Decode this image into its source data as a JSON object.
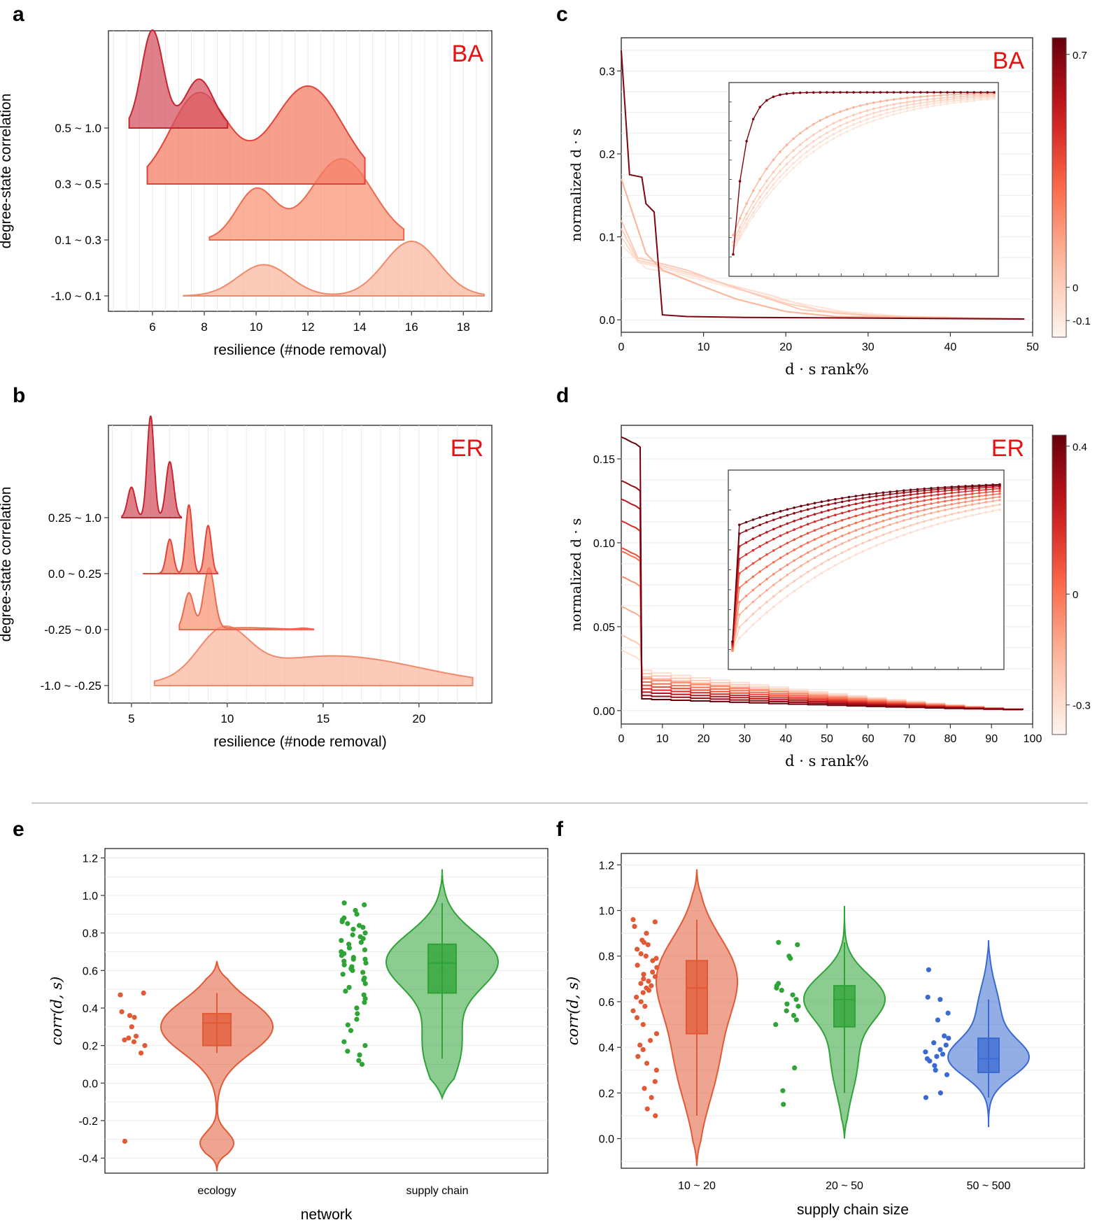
{
  "panel_letters": [
    "a",
    "b",
    "c",
    "d",
    "e",
    "f"
  ],
  "chart_data": [
    {
      "panel": "a",
      "type": "area",
      "title": "",
      "tag": "BA",
      "xlabel": "resilience (#node removal)",
      "ylabel": "degree-state correlation",
      "xlim": [
        4.3,
        19.1
      ],
      "xticks": [
        "6",
        "8",
        "10",
        "12",
        "14",
        "16",
        "18"
      ],
      "yticks": [
        "-1.0 ~ 0.1",
        "0.1 ~ 0.3",
        "0.3 ~ 0.5",
        "0.5 ~ 1.0"
      ],
      "series": [
        {
          "name": "-1.0 ~ 0.1",
          "range": [
            7.2,
            18.8
          ],
          "peak": 0.78,
          "components": [
            [
              10.3,
              1.0,
              1.0
            ],
            [
              16.0,
              1.05,
              1.75
            ]
          ]
        },
        {
          "name": "0.1 ~ 0.3",
          "range": [
            8.2,
            15.7
          ],
          "peak": 1.16,
          "components": [
            [
              10.0,
              0.75,
              0.85
            ],
            [
              13.3,
              1.2,
              1.38
            ]
          ]
        },
        {
          "name": "0.3 ~ 0.5",
          "range": [
            5.8,
            14.2
          ],
          "peak": 1.4,
          "components": [
            [
              7.8,
              1.1,
              1.02
            ],
            [
              12.0,
              1.35,
              1.1
            ]
          ]
        },
        {
          "name": "0.5 ~ 1.0",
          "range": [
            5.1,
            8.9
          ],
          "peak": 1.4,
          "components": [
            [
              6.0,
              0.42,
              1.0
            ],
            [
              7.8,
              0.55,
              0.5
            ]
          ]
        }
      ]
    },
    {
      "panel": "b",
      "type": "area",
      "title": "",
      "tag": "ER",
      "xlabel": "resilience (#node removal)",
      "ylabel": "degree-state correlation",
      "xlim": [
        3.8,
        23.8
      ],
      "xticks": [
        "5",
        "10",
        "15",
        "20"
      ],
      "yticks": [
        "-1.0 ~ -0.25",
        "-0.25 ~ 0.0",
        "0.0 ~ 0.25",
        "0.25 ~ 1.0"
      ],
      "series": [
        {
          "name": "-1.0 ~ -0.25",
          "range": [
            6.2,
            22.8
          ],
          "peak": 0.85,
          "components": [
            [
              9.8,
              1.3,
              0.85
            ],
            [
              15.5,
              4.5,
              0.55
            ]
          ]
        },
        {
          "name": "-0.25 ~ 0.0",
          "range": [
            7.5,
            14.5
          ],
          "peak": 0.88,
          "components": [
            [
              8.0,
              0.25,
              0.6
            ],
            [
              9.05,
              0.28,
              1.0
            ],
            [
              14.0,
              0.3,
              0.02
            ],
            [
              11.0,
              1.5,
              0.03
            ]
          ]
        },
        {
          "name": "0.0 ~ 0.25",
          "range": [
            5.6,
            9.5
          ],
          "peak": 0.98,
          "components": [
            [
              7.0,
              0.18,
              0.5
            ],
            [
              8.0,
              0.17,
              1.0
            ],
            [
              9.0,
              0.17,
              0.7
            ]
          ]
        },
        {
          "name": "0.25 ~ 1.0",
          "range": [
            4.5,
            7.6
          ],
          "peak": 1.45,
          "components": [
            [
              5.0,
              0.2,
              0.3
            ],
            [
              6.0,
              0.18,
              1.0
            ],
            [
              7.0,
              0.2,
              0.55
            ]
          ]
        }
      ]
    },
    {
      "panel": "c",
      "type": "line",
      "title": "",
      "tag": "BA",
      "xlabel": "d · s rank%",
      "ylabel": "normalized d · s",
      "xlim": [
        0,
        50
      ],
      "ylim": [
        -0.015,
        0.34
      ],
      "xticks": [
        0,
        10,
        20,
        30,
        40,
        50
      ],
      "yticks": [
        0.0,
        0.1,
        0.2,
        0.3
      ],
      "colorbar": {
        "min": -0.15,
        "max": 0.75,
        "ticks": [
          -0.1,
          0.0,
          0.7
        ]
      },
      "series": [
        {
          "corr": 0.7,
          "points": [
            [
              0,
              0.325
            ],
            [
              1,
              0.175
            ],
            [
              2.5,
              0.172
            ],
            [
              3,
              0.14
            ],
            [
              4,
              0.13
            ],
            [
              5,
              0.006
            ],
            [
              8,
              0.004
            ],
            [
              15,
              0.003
            ],
            [
              49,
              0.001
            ]
          ]
        },
        {
          "corr": 0.1,
          "points": [
            [
              0,
              0.17
            ],
            [
              1,
              0.14
            ],
            [
              3,
              0.08
            ],
            [
              5,
              0.06
            ],
            [
              8,
              0.048
            ],
            [
              10,
              0.04
            ],
            [
              14,
              0.025
            ],
            [
              20,
              0.01
            ],
            [
              26,
              0.004
            ],
            [
              49,
              0.001
            ]
          ]
        },
        {
          "corr": 0.02,
          "points": [
            [
              0,
              0.12
            ],
            [
              2,
              0.075
            ],
            [
              4,
              0.07
            ],
            [
              8,
              0.06
            ],
            [
              12,
              0.045
            ],
            [
              18,
              0.025
            ],
            [
              22,
              0.012
            ],
            [
              30,
              0.005
            ],
            [
              49,
              0.001
            ]
          ]
        },
        {
          "corr": -0.02,
          "points": [
            [
              0,
              0.11
            ],
            [
              2,
              0.072
            ],
            [
              5,
              0.065
            ],
            [
              10,
              0.052
            ],
            [
              15,
              0.035
            ],
            [
              20,
              0.02
            ],
            [
              26,
              0.008
            ],
            [
              35,
              0.003
            ],
            [
              49,
              0.001
            ]
          ]
        },
        {
          "corr": -0.06,
          "points": [
            [
              0,
              0.1
            ],
            [
              2,
              0.07
            ],
            [
              6,
              0.06
            ],
            [
              12,
              0.045
            ],
            [
              18,
              0.03
            ],
            [
              24,
              0.012
            ],
            [
              32,
              0.004
            ],
            [
              49,
              0.001
            ]
          ]
        },
        {
          "corr": -0.09,
          "points": [
            [
              0,
              0.09
            ],
            [
              3,
              0.062
            ],
            [
              7,
              0.055
            ],
            [
              13,
              0.04
            ],
            [
              19,
              0.025
            ],
            [
              27,
              0.01
            ],
            [
              36,
              0.003
            ],
            [
              49,
              0.001
            ]
          ]
        }
      ],
      "inset": {
        "points_per_curve": 40,
        "curves": [
          {
            "corr": 0.7,
            "start": 0.07,
            "rate": 0.6
          },
          {
            "corr": 0.1,
            "start": 0.18,
            "rate": 0.125
          },
          {
            "corr": 0.02,
            "start": 0.14,
            "rate": 0.105
          },
          {
            "corr": -0.02,
            "start": 0.12,
            "rate": 0.095
          },
          {
            "corr": -0.06,
            "start": 0.1,
            "rate": 0.088
          },
          {
            "corr": -0.09,
            "start": 0.09,
            "rate": 0.082
          }
        ]
      }
    },
    {
      "panel": "d",
      "type": "line",
      "title": "",
      "tag": "ER",
      "xlabel": "d · s rank%",
      "ylabel": "normalized d · s",
      "xlim": [
        0,
        100
      ],
      "ylim": [
        -0.008,
        0.17
      ],
      "xticks": [
        0,
        10,
        20,
        30,
        40,
        50,
        60,
        70,
        80,
        90,
        100
      ],
      "yticks": [
        0.0,
        0.05,
        0.1,
        0.15
      ],
      "colorbar": {
        "min": -0.38,
        "max": 0.43,
        "ticks": [
          -0.3,
          0,
          0.4
        ]
      },
      "series": [
        {
          "corr": 0.42,
          "start": 0.163,
          "plateau": 0.007,
          "end": 0.0005
        },
        {
          "corr": 0.34,
          "start": 0.137,
          "plateau": 0.009,
          "end": 0.0005
        },
        {
          "corr": 0.26,
          "start": 0.126,
          "plateau": 0.011,
          "end": 0.0005
        },
        {
          "corr": 0.18,
          "start": 0.113,
          "plateau": 0.013,
          "end": 0.0005
        },
        {
          "corr": 0.1,
          "start": 0.097,
          "plateau": 0.015,
          "end": 0.0005
        },
        {
          "corr": 0.02,
          "start": 0.095,
          "plateau": 0.017,
          "end": 0.0005
        },
        {
          "corr": -0.06,
          "start": 0.08,
          "plateau": 0.019,
          "end": 0.0005
        },
        {
          "corr": -0.14,
          "start": 0.062,
          "plateau": 0.02,
          "end": 0.0005
        },
        {
          "corr": -0.22,
          "start": 0.045,
          "plateau": 0.022,
          "end": 0.0005
        },
        {
          "corr": -0.3,
          "start": 0.036,
          "plateau": 0.024,
          "end": 0.0005
        }
      ],
      "inset": {
        "points_per_curve": 40,
        "curves": [
          {
            "corr": 0.42,
            "start": 0.1,
            "jump": 0.75,
            "rate": 0.06
          },
          {
            "corr": 0.34,
            "start": 0.1,
            "jump": 0.7,
            "rate": 0.06
          },
          {
            "corr": 0.26,
            "start": 0.09,
            "jump": 0.63,
            "rate": 0.06
          },
          {
            "corr": 0.18,
            "start": 0.08,
            "jump": 0.56,
            "rate": 0.058
          },
          {
            "corr": 0.1,
            "start": 0.07,
            "jump": 0.48,
            "rate": 0.056
          },
          {
            "corr": 0.02,
            "start": 0.06,
            "jump": 0.4,
            "rate": 0.054
          },
          {
            "corr": -0.06,
            "start": 0.05,
            "jump": 0.32,
            "rate": 0.052
          },
          {
            "corr": -0.14,
            "start": 0.05,
            "jump": 0.25,
            "rate": 0.05
          },
          {
            "corr": -0.22,
            "start": 0.05,
            "jump": 0.18,
            "rate": 0.047
          },
          {
            "corr": -0.3,
            "start": 0.05,
            "jump": 0.12,
            "rate": 0.044
          }
        ]
      }
    },
    {
      "panel": "e",
      "type": "violin",
      "title": "",
      "xlabel": "network",
      "ylabel": "corr(d, s)",
      "ylim": [
        -0.48,
        1.25
      ],
      "yticks": [
        -0.4,
        -0.2,
        0.0,
        0.2,
        0.4,
        0.6,
        0.8,
        1.0,
        1.2
      ],
      "groups": [
        {
          "label": "ecology",
          "color": "#e15a36",
          "points": [
            0.47,
            0.48,
            0.38,
            0.35,
            0.36,
            0.3,
            0.25,
            0.23,
            0.24,
            0.22,
            0.2,
            0.16,
            -0.31
          ],
          "box": {
            "q1": 0.2,
            "median": 0.32,
            "q3": 0.37,
            "min": 0.16,
            "max": 0.48
          },
          "violin": {
            "min": -0.47,
            "max": 0.65,
            "components": [
              [
                0.3,
                0.14,
                1.0
              ],
              [
                -0.32,
                0.06,
                0.3
              ]
            ]
          }
        },
        {
          "label": "supply chain",
          "color": "#2ea336",
          "points": [
            0.96,
            0.95,
            0.92,
            0.9,
            0.88,
            0.87,
            0.86,
            0.85,
            0.84,
            0.83,
            0.82,
            0.8,
            0.79,
            0.78,
            0.77,
            0.76,
            0.75,
            0.74,
            0.72,
            0.71,
            0.7,
            0.69,
            0.68,
            0.67,
            0.66,
            0.66,
            0.65,
            0.64,
            0.63,
            0.62,
            0.61,
            0.6,
            0.59,
            0.58,
            0.56,
            0.55,
            0.53,
            0.51,
            0.49,
            0.47,
            0.45,
            0.43,
            0.4,
            0.37,
            0.34,
            0.31,
            0.28,
            0.22,
            0.2,
            0.17,
            0.15,
            0.12,
            0.1
          ],
          "box": {
            "q1": 0.48,
            "median": 0.64,
            "q3": 0.74,
            "min": 0.13,
            "max": 0.96
          },
          "violin": {
            "min": -0.08,
            "max": 1.14,
            "components": [
              [
                0.65,
                0.15,
                1.0
              ],
              [
                0.2,
                0.18,
                0.35
              ]
            ]
          }
        }
      ]
    },
    {
      "panel": "f",
      "type": "violin",
      "title": "",
      "xlabel": "supply chain size",
      "ylabel": "corr(d, s)",
      "ylim": [
        -0.13,
        1.25
      ],
      "yticks": [
        0.0,
        0.2,
        0.4,
        0.6,
        0.8,
        1.0,
        1.2
      ],
      "groups": [
        {
          "label": "10 ~ 20",
          "color": "#e15a36",
          "points": [
            0.96,
            0.95,
            0.93,
            0.9,
            0.87,
            0.86,
            0.85,
            0.83,
            0.81,
            0.8,
            0.79,
            0.78,
            0.76,
            0.75,
            0.73,
            0.72,
            0.71,
            0.7,
            0.69,
            0.68,
            0.67,
            0.66,
            0.65,
            0.64,
            0.62,
            0.6,
            0.58,
            0.56,
            0.53,
            0.5,
            0.46,
            0.43,
            0.41,
            0.39,
            0.36,
            0.33,
            0.3,
            0.25,
            0.22,
            0.18,
            0.13,
            0.1
          ],
          "box": {
            "q1": 0.46,
            "median": 0.66,
            "q3": 0.78,
            "min": 0.1,
            "max": 0.96
          },
          "violin": {
            "min": -0.12,
            "max": 1.18,
            "components": [
              [
                0.72,
                0.17,
                1.0
              ],
              [
                0.35,
                0.2,
                0.55
              ]
            ]
          }
        },
        {
          "label": "20 ~ 50",
          "color": "#2ea336",
          "points": [
            0.86,
            0.85,
            0.8,
            0.79,
            0.68,
            0.67,
            0.66,
            0.65,
            0.63,
            0.61,
            0.59,
            0.58,
            0.56,
            0.54,
            0.52,
            0.5,
            0.31,
            0.21,
            0.15
          ],
          "box": {
            "q1": 0.49,
            "median": 0.61,
            "q3": 0.67,
            "min": 0.2,
            "max": 0.86
          },
          "violin": {
            "min": 0.0,
            "max": 1.02,
            "components": [
              [
                0.62,
                0.1,
                1.0
              ],
              [
                0.35,
                0.15,
                0.35
              ]
            ]
          }
        },
        {
          "label": "50 ~ 500",
          "color": "#3a6ad0",
          "points": [
            0.74,
            0.62,
            0.61,
            0.55,
            0.52,
            0.45,
            0.44,
            0.42,
            0.41,
            0.39,
            0.38,
            0.37,
            0.36,
            0.35,
            0.34,
            0.32,
            0.3,
            0.28,
            0.2,
            0.18
          ],
          "box": {
            "q1": 0.29,
            "median": 0.35,
            "q3": 0.44,
            "min": 0.18,
            "max": 0.61
          },
          "violin": {
            "min": 0.05,
            "max": 0.87,
            "components": [
              [
                0.35,
                0.08,
                1.0
              ],
              [
                0.55,
                0.12,
                0.3
              ]
            ]
          }
        }
      ]
    }
  ]
}
